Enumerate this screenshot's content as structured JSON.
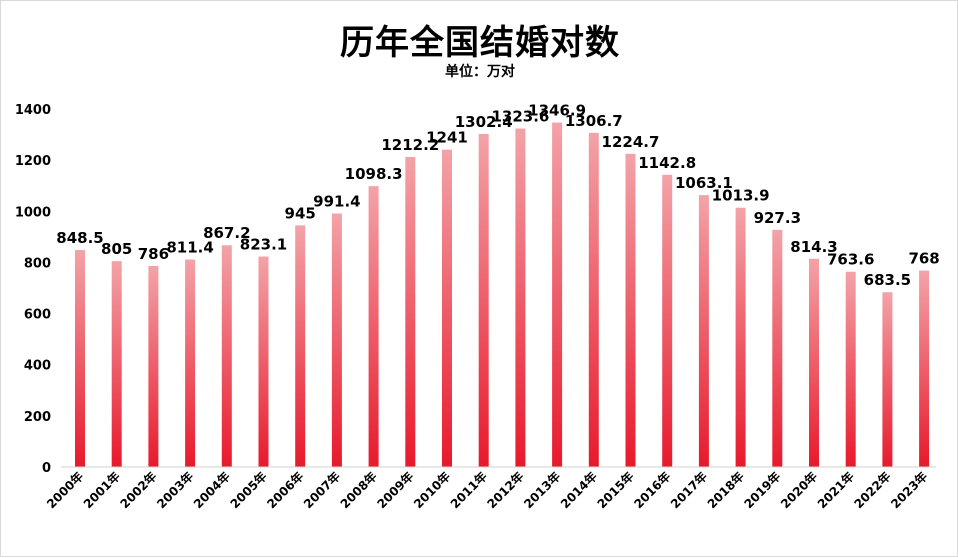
{
  "header": {
    "title": "历年全国结婚对数",
    "subtitle": "单位：万对"
  },
  "chart_data": {
    "type": "bar",
    "title": "历年全国结婚对数",
    "subtitle": "单位：万对",
    "xlabel": "",
    "ylabel": "",
    "ylim": [
      0,
      1400
    ],
    "yticks": [
      0,
      200,
      400,
      600,
      800,
      1000,
      1200,
      1400
    ],
    "grid": false,
    "legend": "none",
    "bar_color_top": "#f3a3a8",
    "bar_color_bottom": "#e8192c",
    "categories": [
      "2000年",
      "2001年",
      "2002年",
      "2003年",
      "2004年",
      "2005年",
      "2006年",
      "2007年",
      "2008年",
      "2009年",
      "2010年",
      "2011年",
      "2012年",
      "2013年",
      "2014年",
      "2015年",
      "2016年",
      "2017年",
      "2018年",
      "2019年",
      "2020年",
      "2021年",
      "2022年",
      "2023年"
    ],
    "values": [
      848.5,
      805,
      786,
      811.4,
      867.2,
      823.1,
      945,
      991.4,
      1098.3,
      1212.2,
      1241,
      1302.4,
      1323.6,
      1346.9,
      1306.7,
      1224.7,
      1142.8,
      1063.1,
      1013.9,
      927.3,
      814.3,
      763.6,
      683.5,
      768
    ],
    "labels": [
      "848.5",
      "805",
      "786",
      "811.4",
      "867.2",
      "823.1",
      "945",
      "991.4",
      "1098.3",
      "1212.2",
      "1241",
      "1302.4",
      "1323.6",
      "1346.9",
      "1306.7",
      "1224.7",
      "1142.8",
      "1063.1",
      "1013.9",
      "927.3",
      "814.3",
      "763.6",
      "683.5",
      "768"
    ]
  }
}
